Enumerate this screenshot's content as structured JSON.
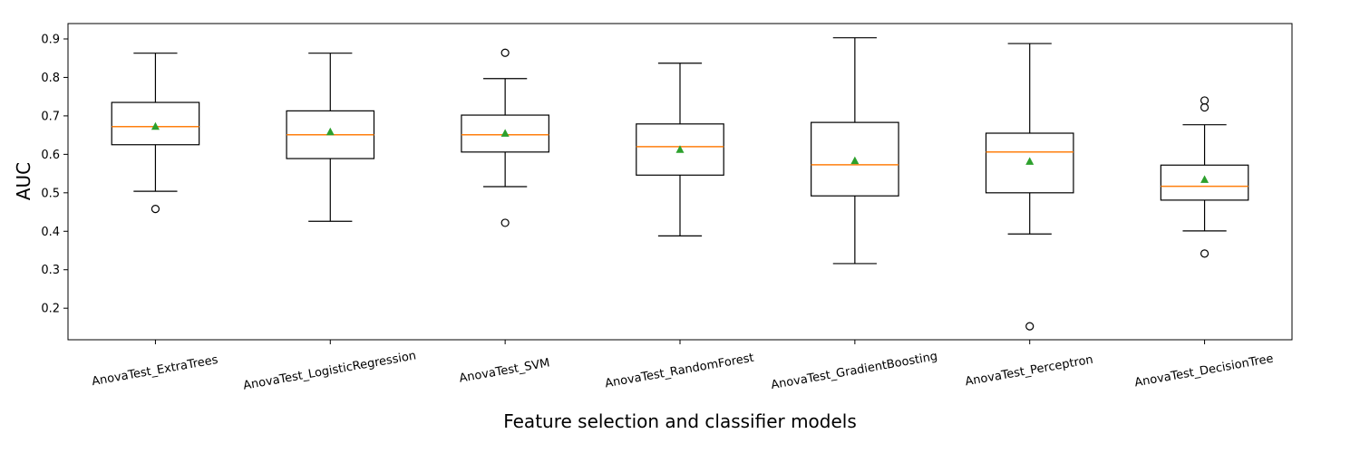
{
  "chart_data": {
    "type": "box",
    "title": "",
    "xlabel": "Feature selection and classifier models",
    "ylabel": "AUC",
    "ylim": [
      0.118,
      0.94
    ],
    "yticks": [
      0.2,
      0.3,
      0.4,
      0.5,
      0.6,
      0.7,
      0.8,
      0.9
    ],
    "ytick_labels": [
      "0.2",
      "0.3",
      "0.4",
      "0.5",
      "0.6",
      "0.7",
      "0.8",
      "0.9"
    ],
    "grid": false,
    "legend": "none",
    "colors": {
      "box": "#000000",
      "median": "#ff7f0e",
      "mean": "#2ca02c"
    },
    "categories": [
      "AnovaTest_ExtraTrees",
      "AnovaTest_LogisticRegression",
      "AnovaTest_SVM",
      "AnovaTest_RandomForest",
      "AnovaTest_GradientBoosting",
      "AnovaTest_Perceptron",
      "AnovaTest_DecisionTree"
    ],
    "boxes": [
      {
        "whisker_low": 0.504,
        "q1": 0.625,
        "median": 0.672,
        "q3": 0.735,
        "whisker_high": 0.863,
        "mean": 0.672,
        "outliers": [
          0.458
        ]
      },
      {
        "whisker_low": 0.426,
        "q1": 0.589,
        "median": 0.651,
        "q3": 0.713,
        "whisker_high": 0.863,
        "mean": 0.658,
        "outliers": []
      },
      {
        "whisker_low": 0.516,
        "q1": 0.606,
        "median": 0.651,
        "q3": 0.702,
        "whisker_high": 0.797,
        "mean": 0.654,
        "outliers": [
          0.864,
          0.422
        ]
      },
      {
        "whisker_low": 0.388,
        "q1": 0.546,
        "median": 0.62,
        "q3": 0.679,
        "whisker_high": 0.837,
        "mean": 0.612,
        "outliers": []
      },
      {
        "whisker_low": 0.316,
        "q1": 0.492,
        "median": 0.573,
        "q3": 0.683,
        "whisker_high": 0.903,
        "mean": 0.583,
        "outliers": []
      },
      {
        "whisker_low": 0.393,
        "q1": 0.5,
        "median": 0.606,
        "q3": 0.655,
        "whisker_high": 0.888,
        "mean": 0.581,
        "outliers": [
          0.153
        ]
      },
      {
        "whisker_low": 0.401,
        "q1": 0.481,
        "median": 0.517,
        "q3": 0.572,
        "whisker_high": 0.677,
        "mean": 0.534,
        "outliers": [
          0.74,
          0.722,
          0.342
        ]
      }
    ]
  }
}
